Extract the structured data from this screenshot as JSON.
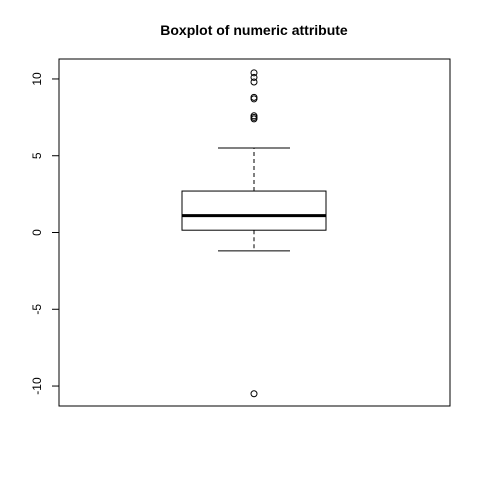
{
  "chart_data": {
    "type": "boxplot",
    "title": "Boxplot of numeric attribute",
    "xlabel": "",
    "ylabel": "",
    "ylim": [
      -11.3,
      11.3
    ],
    "yticks": [
      {
        "value": -10,
        "label": "-10"
      },
      {
        "value": -5,
        "label": "-5"
      },
      {
        "value": 0,
        "label": "0"
      },
      {
        "value": 5,
        "label": "5"
      },
      {
        "value": 10,
        "label": "10"
      }
    ],
    "box": {
      "whisker_low": -1.2,
      "q1": 0.15,
      "median": 1.1,
      "q3": 2.7,
      "whisker_high": 5.5
    },
    "outliers": [
      10.4,
      10.1,
      9.8,
      8.8,
      8.7,
      7.6,
      7.5,
      7.4,
      -10.5
    ],
    "grid": false,
    "legend": "none"
  }
}
